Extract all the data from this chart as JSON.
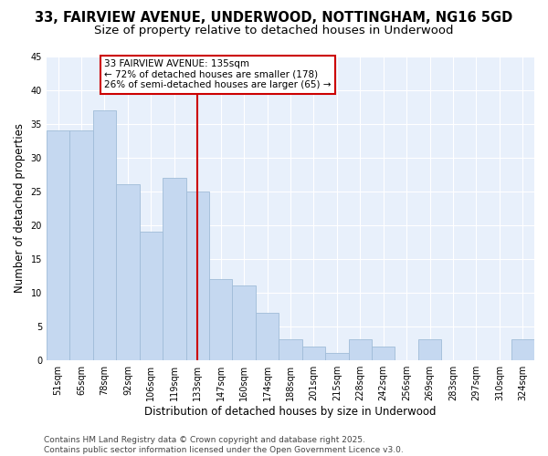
{
  "title": "33, FAIRVIEW AVENUE, UNDERWOOD, NOTTINGHAM, NG16 5GD",
  "subtitle": "Size of property relative to detached houses in Underwood",
  "xlabel": "Distribution of detached houses by size in Underwood",
  "ylabel": "Number of detached properties",
  "categories": [
    "51sqm",
    "65sqm",
    "78sqm",
    "92sqm",
    "106sqm",
    "119sqm",
    "133sqm",
    "147sqm",
    "160sqm",
    "174sqm",
    "188sqm",
    "201sqm",
    "215sqm",
    "228sqm",
    "242sqm",
    "256sqm",
    "269sqm",
    "283sqm",
    "297sqm",
    "310sqm",
    "324sqm"
  ],
  "values": [
    34,
    34,
    37,
    26,
    19,
    27,
    25,
    12,
    11,
    7,
    3,
    2,
    1,
    3,
    2,
    0,
    3,
    0,
    0,
    0,
    3
  ],
  "bar_color": "#c5d8f0",
  "bar_edge_color": "#a0bcd8",
  "highlight_index": 6,
  "highlight_color": "#cc0000",
  "annotation_title": "33 FAIRVIEW AVENUE: 135sqm",
  "annotation_line1": "← 72% of detached houses are smaller (178)",
  "annotation_line2": "26% of semi-detached houses are larger (65) →",
  "annotation_box_color": "#cc0000",
  "vline_color": "#cc0000",
  "ylim": [
    0,
    45
  ],
  "yticks": [
    0,
    5,
    10,
    15,
    20,
    25,
    30,
    35,
    40,
    45
  ],
  "footer_line1": "Contains HM Land Registry data © Crown copyright and database right 2025.",
  "footer_line2": "Contains public sector information licensed under the Open Government Licence v3.0.",
  "bg_color": "#ffffff",
  "plot_bg_color": "#e8f0fb",
  "grid_color": "#ffffff",
  "title_fontsize": 10.5,
  "subtitle_fontsize": 9.5,
  "axis_label_fontsize": 8.5,
  "tick_fontsize": 7,
  "footer_fontsize": 6.5,
  "annotation_fontsize": 7.5
}
